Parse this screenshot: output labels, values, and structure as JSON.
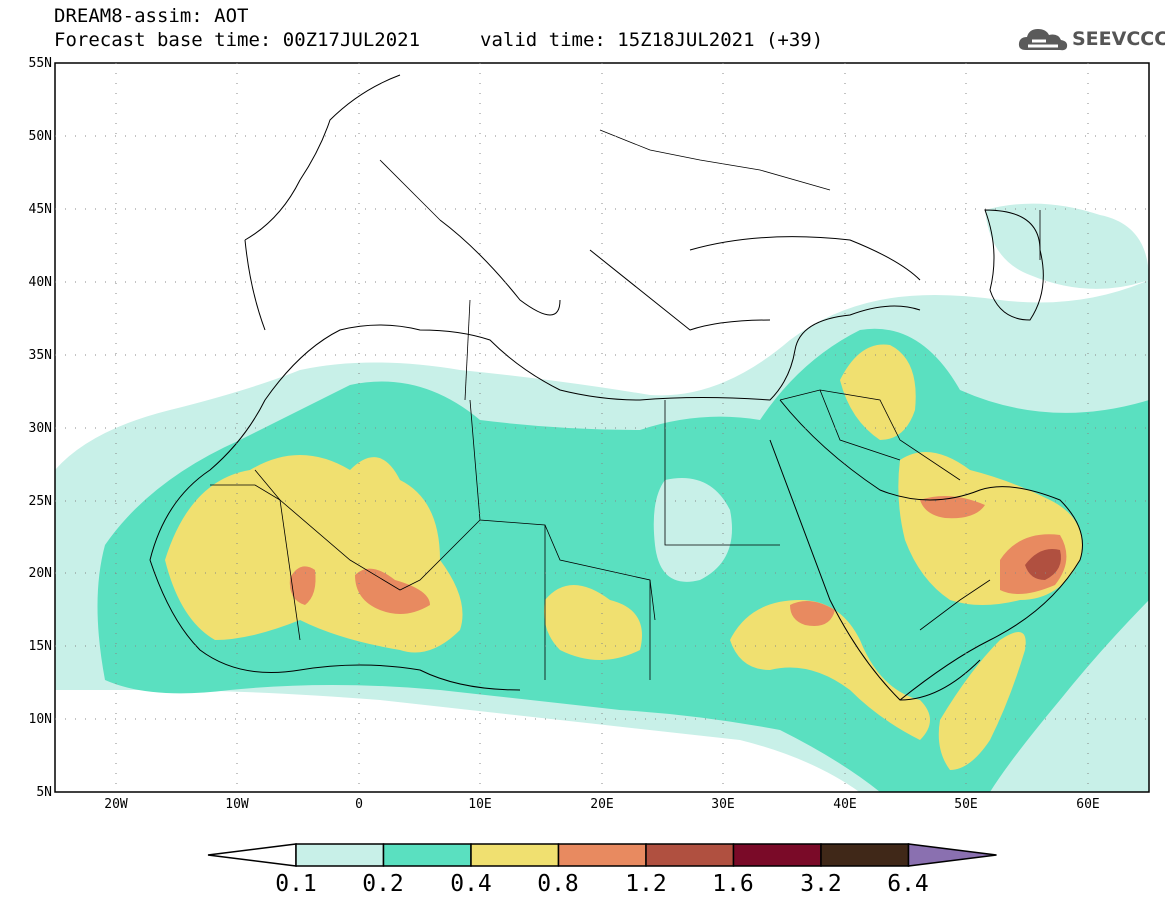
{
  "header": {
    "line1": "DREAM8-assim: AOT",
    "line2": "Forecast base time: 00Z17JUL2021",
    "valid": "valid time: 15Z18JUL2021 (+39)"
  },
  "logo": {
    "text": "SEEVCCC",
    "icon": "cloud-icon"
  },
  "map": {
    "extent": {
      "lon_min": -25,
      "lon_max": 65,
      "lat_min": 5,
      "lat_max": 55
    },
    "lat_labels": [
      "55N",
      "50N",
      "45N",
      "40N",
      "35N",
      "30N",
      "25N",
      "20N",
      "15N",
      "10N",
      "5N"
    ],
    "lon_labels": [
      "20W",
      "10W",
      "0",
      "10E",
      "20E",
      "30E",
      "40E",
      "50E",
      "60E"
    ],
    "gridlines": "dotted"
  },
  "colorbar": {
    "labels": [
      "0.1",
      "0.2",
      "0.4",
      "0.8",
      "1.2",
      "1.6",
      "3.2",
      "6.4"
    ],
    "colors": [
      "#ffffff",
      "#c8f0e8",
      "#5ae0c0",
      "#f0e070",
      "#e88a60",
      "#b05040",
      "#7a0a28",
      "#402818",
      "#8a70b0"
    ]
  }
}
